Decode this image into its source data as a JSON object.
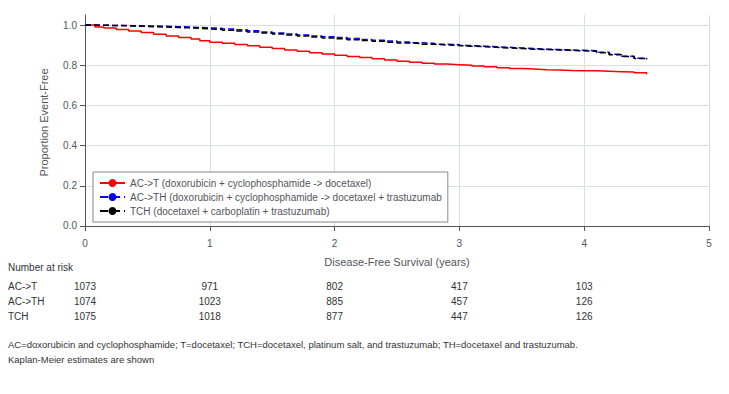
{
  "chart_data": {
    "type": "step",
    "xlabel": "Disease-Free Survival (years)",
    "ylabel": "Proportion Event-Free",
    "xlim": [
      0,
      5
    ],
    "ylim": [
      -0.02,
      1.05
    ],
    "xticks": [
      0,
      1,
      2,
      3,
      4,
      5
    ],
    "yticks": [
      {
        "value": 0.0,
        "label": "0.0"
      },
      0.2,
      0.4,
      0.6,
      0.8,
      {
        "value": 1.0,
        "label": "1.0"
      }
    ],
    "grid": true,
    "legend": "lower left",
    "x": [
      0,
      0.08,
      0.15,
      0.25,
      0.35,
      0.45,
      0.55,
      0.65,
      0.75,
      0.85,
      0.92,
      1.0,
      1.1,
      1.2,
      1.3,
      1.4,
      1.5,
      1.6,
      1.7,
      1.8,
      1.9,
      2.0,
      2.1,
      2.2,
      2.3,
      2.4,
      2.5,
      2.6,
      2.7,
      2.8,
      2.9,
      3.0,
      3.1,
      3.2,
      3.3,
      3.4,
      3.5,
      3.6,
      3.7,
      3.8,
      3.9,
      4.0,
      4.1,
      4.2,
      4.3,
      4.4,
      4.5
    ],
    "series": [
      {
        "name": "AC->T (doxorubicin + cyclophosphamide -> docetaxel)",
        "color": "red",
        "line_style": "solid",
        "values": [
          1.0,
          0.99,
          0.985,
          0.978,
          0.97,
          0.963,
          0.954,
          0.945,
          0.938,
          0.93,
          0.922,
          0.915,
          0.91,
          0.903,
          0.897,
          0.89,
          0.883,
          0.876,
          0.869,
          0.862,
          0.856,
          0.85,
          0.844,
          0.838,
          0.832,
          0.826,
          0.82,
          0.815,
          0.81,
          0.806,
          0.803,
          0.8,
          0.796,
          0.792,
          0.788,
          0.784,
          0.781,
          0.778,
          0.776,
          0.774,
          0.773,
          0.772,
          0.77,
          0.768,
          0.766,
          0.762,
          0.755
        ]
      },
      {
        "name": "AC->TH (doxorubicin + cyclophosphamide -> docetaxel + trastuzumab",
        "color": "blue",
        "line_style": "dashed",
        "values": [
          1.0,
          0.999,
          0.998,
          0.997,
          0.996,
          0.995,
          0.994,
          0.992,
          0.99,
          0.988,
          0.986,
          0.984,
          0.98,
          0.976,
          0.971,
          0.966,
          0.961,
          0.956,
          0.951,
          0.946,
          0.942,
          0.938,
          0.933,
          0.928,
          0.924,
          0.92,
          0.916,
          0.912,
          0.909,
          0.905,
          0.902,
          0.898,
          0.895,
          0.892,
          0.889,
          0.886,
          0.883,
          0.88,
          0.878,
          0.876,
          0.874,
          0.872,
          0.865,
          0.855,
          0.845,
          0.835,
          0.828
        ]
      },
      {
        "name": "TCH (docetaxel + carboplatin + trastuzumab)",
        "color": "black",
        "line_style": "dashed",
        "values": [
          1.0,
          0.999,
          0.998,
          0.996,
          0.994,
          0.992,
          0.99,
          0.988,
          0.986,
          0.984,
          0.981,
          0.978,
          0.974,
          0.97,
          0.965,
          0.96,
          0.955,
          0.95,
          0.945,
          0.94,
          0.936,
          0.932,
          0.927,
          0.923,
          0.919,
          0.915,
          0.911,
          0.908,
          0.904,
          0.901,
          0.898,
          0.895,
          0.892,
          0.889,
          0.886,
          0.883,
          0.88,
          0.878,
          0.876,
          0.874,
          0.872,
          0.87,
          0.862,
          0.852,
          0.843,
          0.834,
          0.828
        ]
      }
    ],
    "number_at_risk": {
      "title": "Number at risk",
      "times": [
        0,
        1,
        2,
        3,
        4
      ],
      "rows": [
        {
          "label": "AC->T",
          "values": [
            1073,
            971,
            802,
            417,
            103
          ]
        },
        {
          "label": "AC->TH",
          "values": [
            1074,
            1023,
            885,
            457,
            126
          ]
        },
        {
          "label": "TCH",
          "values": [
            1075,
            1018,
            877,
            447,
            126
          ]
        }
      ]
    },
    "footnotes": [
      "AC=doxorubicin and cyclophosphamide; T=docetaxel; TCH=docetaxel, platinum salt, and trastuzumab; TH=docetaxel and trastuzumab.",
      "Kaplan-Meier estimates are shown"
    ]
  }
}
